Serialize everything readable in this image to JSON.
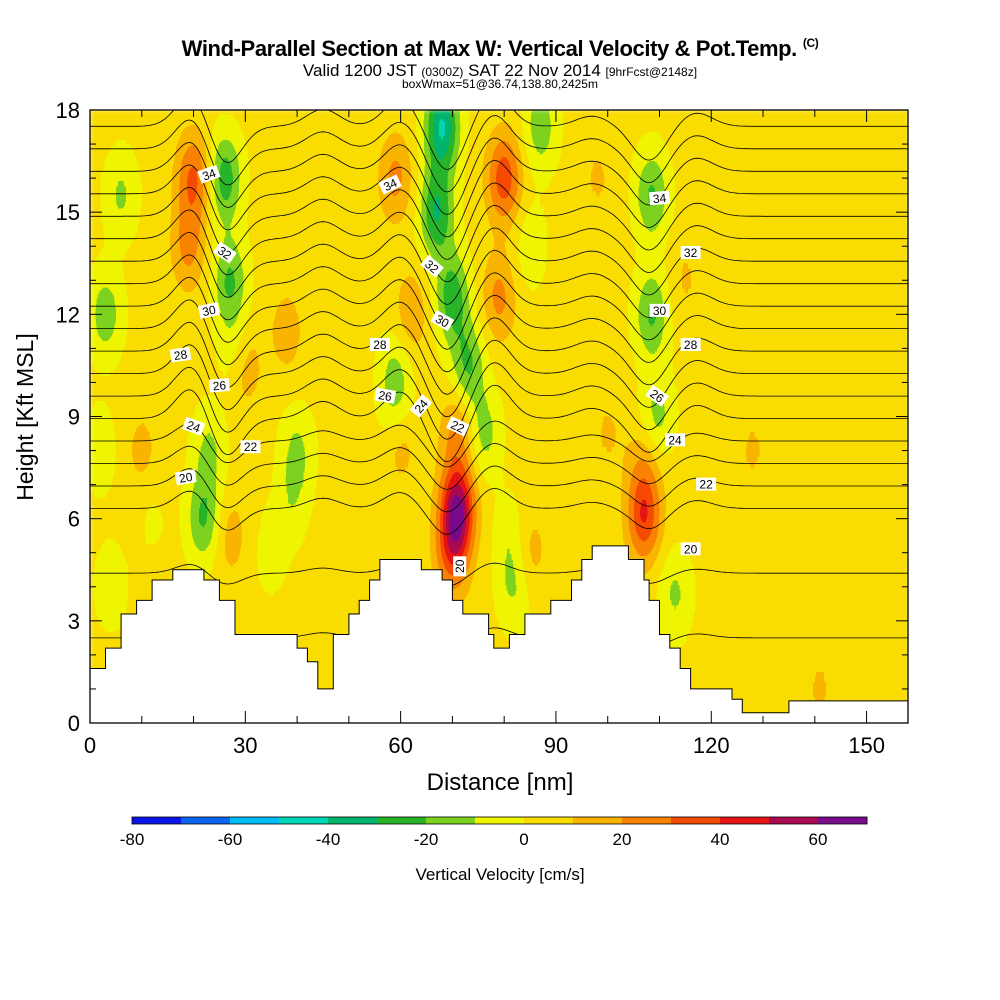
{
  "titles": {
    "main": "Wind-Parallel Section at Max W: Vertical Velocity & Pot.Temp.",
    "copyright": "(C)",
    "valid_prefix": "Valid 1200 JST",
    "valid_utc": "(0300Z)",
    "valid_date": "SAT 22 Nov 2014",
    "forecast": "[9hrFcst@2148z]",
    "box_max": "boxWmax=51@36.74,138.80,2425m"
  },
  "chart_data": {
    "type": "contour",
    "title": "Wind-Parallel Section at Max W: Vertical Velocity & Pot.Temp.",
    "xlabel": "Distance [nm]",
    "ylabel": "Height [Kft MSL]",
    "xlim": [
      0,
      158
    ],
    "ylim": [
      0,
      18
    ],
    "xticks": [
      0,
      30,
      60,
      90,
      120,
      150
    ],
    "yticks": [
      0,
      3,
      6,
      9,
      12,
      15,
      18
    ],
    "colorbar": {
      "label": "Vertical Velocity [cm/s]",
      "ticks": [
        -80,
        -60,
        -40,
        -20,
        0,
        20,
        40,
        60
      ],
      "range": [
        -80,
        70
      ],
      "levels": [
        -80,
        -70,
        -60,
        -50,
        -40,
        -30,
        -20,
        -10,
        0,
        10,
        20,
        30,
        40,
        50,
        60,
        70
      ],
      "colors": [
        "#0a14e6",
        "#0a64f0",
        "#00bef5",
        "#00d7b4",
        "#00b46e",
        "#28b428",
        "#7dd21e",
        "#f0f500",
        "#fadc00",
        "#fab400",
        "#fa8200",
        "#f54b00",
        "#e61414",
        "#aa0a50",
        "#780a8c"
      ]
    },
    "vertical_velocity_features": [
      {
        "x": 71,
        "y": 6.3,
        "w": 55
      },
      {
        "x": 70,
        "y": 5,
        "w": 30
      },
      {
        "x": 71,
        "y": 8.5,
        "w": 20
      },
      {
        "x": 107,
        "y": 6,
        "w": 35
      },
      {
        "x": 107,
        "y": 7.5,
        "w": 15
      },
      {
        "x": 20,
        "y": 16,
        "w": 30
      },
      {
        "x": 19,
        "y": 14,
        "w": 20
      },
      {
        "x": 80,
        "y": 16,
        "w": 35
      },
      {
        "x": 79,
        "y": 12.5,
        "w": 20
      },
      {
        "x": 59,
        "y": 16,
        "w": 20
      },
      {
        "x": 62,
        "y": 12,
        "w": 15
      },
      {
        "x": 10,
        "y": 8,
        "w": 10
      },
      {
        "x": 30,
        "y": 10.5,
        "w": 15
      },
      {
        "x": 38,
        "y": 11.5,
        "w": 12
      },
      {
        "x": 27,
        "y": 5.5,
        "w": 12
      },
      {
        "x": 60,
        "y": 8.2,
        "w": 12
      },
      {
        "x": 85,
        "y": 5,
        "w": 12
      },
      {
        "x": 115,
        "y": 13,
        "w": 8
      },
      {
        "x": 128,
        "y": 8,
        "w": 8
      },
      {
        "x": 100,
        "y": 8.5,
        "w": 8
      },
      {
        "x": 30,
        "y": 1,
        "w": 8
      },
      {
        "x": 64,
        "y": 1.5,
        "w": 8
      },
      {
        "x": 141,
        "y": 1,
        "w": 8
      },
      {
        "x": 98,
        "y": 16,
        "w": 8
      },
      {
        "x": 26,
        "y": 16,
        "w": -30
      },
      {
        "x": 27,
        "y": 13,
        "w": -25
      },
      {
        "x": 28,
        "y": 11,
        "w": -12
      },
      {
        "x": 3,
        "y": 12,
        "w": -20
      },
      {
        "x": 6,
        "y": 15.5,
        "w": -15
      },
      {
        "x": 2,
        "y": 8,
        "w": -10
      },
      {
        "x": 68,
        "y": 17.5,
        "w": -45
      },
      {
        "x": 67,
        "y": 15,
        "w": -35
      },
      {
        "x": 70,
        "y": 12.5,
        "w": -30
      },
      {
        "x": 73,
        "y": 10.5,
        "w": -25
      },
      {
        "x": 76,
        "y": 8.5,
        "w": -18
      },
      {
        "x": 87,
        "y": 17.5,
        "w": -20
      },
      {
        "x": 85,
        "y": 14,
        "w": -10
      },
      {
        "x": 108.5,
        "y": 15.5,
        "w": -25
      },
      {
        "x": 108.5,
        "y": 12,
        "w": -25
      },
      {
        "x": 109.5,
        "y": 9,
        "w": -18
      },
      {
        "x": 22,
        "y": 6,
        "w": -25
      },
      {
        "x": 23,
        "y": 8,
        "w": -15
      },
      {
        "x": 40,
        "y": 8,
        "w": -15
      },
      {
        "x": 39,
        "y": 6.5,
        "w": -10
      },
      {
        "x": 59,
        "y": 9.5,
        "w": -15
      },
      {
        "x": 59,
        "y": 10.5,
        "w": -10
      },
      {
        "x": 82,
        "y": 4,
        "w": -15
      },
      {
        "x": 81,
        "y": 5.5,
        "w": -10
      },
      {
        "x": 113,
        "y": 3.8,
        "w": -15
      },
      {
        "x": 35,
        "y": 5,
        "w": -8
      },
      {
        "x": 4,
        "y": 4,
        "w": -10
      },
      {
        "x": 12,
        "y": 6,
        "w": -5
      }
    ],
    "potential_temperature": {
      "levels": [
        18,
        19,
        20,
        21,
        22,
        23,
        24,
        25,
        26,
        27,
        28,
        29,
        30,
        31,
        32,
        33,
        34,
        35,
        36,
        37
      ],
      "labels": [
        {
          "text": "34",
          "x": 23,
          "y": 16.1,
          "angle": -20
        },
        {
          "text": "32",
          "x": 26,
          "y": 13.8,
          "angle": 35
        },
        {
          "text": "30",
          "x": 23,
          "y": 12.1,
          "angle": -12
        },
        {
          "text": "28",
          "x": 17.5,
          "y": 10.8,
          "angle": -8
        },
        {
          "text": "26",
          "x": 25,
          "y": 9.9,
          "angle": -5
        },
        {
          "text": "24",
          "x": 20,
          "y": 8.7,
          "angle": 20
        },
        {
          "text": "22",
          "x": 31,
          "y": 8.1,
          "angle": 0
        },
        {
          "text": "20",
          "x": 18.5,
          "y": 7.2,
          "angle": -10
        },
        {
          "text": "34",
          "x": 58,
          "y": 15.8,
          "angle": -25
        },
        {
          "text": "32",
          "x": 66,
          "y": 13.4,
          "angle": 40
        },
        {
          "text": "30",
          "x": 68,
          "y": 11.8,
          "angle": 30
        },
        {
          "text": "28",
          "x": 56,
          "y": 11.1,
          "angle": 0
        },
        {
          "text": "26",
          "x": 57,
          "y": 9.6,
          "angle": 10
        },
        {
          "text": "24",
          "x": 64,
          "y": 9.3,
          "angle": -50
        },
        {
          "text": "22",
          "x": 71,
          "y": 8.7,
          "angle": 25
        },
        {
          "text": "20",
          "x": 71.5,
          "y": 4.6,
          "angle": -90
        },
        {
          "text": "34",
          "x": 110,
          "y": 15.4,
          "angle": -5
        },
        {
          "text": "32",
          "x": 116,
          "y": 13.8,
          "angle": 0
        },
        {
          "text": "30",
          "x": 110,
          "y": 12.1,
          "angle": 0
        },
        {
          "text": "28",
          "x": 116,
          "y": 11.1,
          "angle": 0
        },
        {
          "text": "26",
          "x": 109.5,
          "y": 9.6,
          "angle": 35
        },
        {
          "text": "24",
          "x": 113,
          "y": 8.3,
          "angle": 0
        },
        {
          "text": "22",
          "x": 119,
          "y": 7,
          "angle": 0
        },
        {
          "text": "20",
          "x": 116,
          "y": 5.1,
          "angle": 0
        }
      ]
    },
    "terrain": [
      [
        0,
        1.6
      ],
      [
        3,
        1.6
      ],
      [
        3,
        2.2
      ],
      [
        6,
        2.2
      ],
      [
        6,
        3.2
      ],
      [
        9,
        3.2
      ],
      [
        9,
        3.6
      ],
      [
        12,
        3.6
      ],
      [
        12,
        4.2
      ],
      [
        16,
        4.2
      ],
      [
        16,
        4.5
      ],
      [
        22,
        4.5
      ],
      [
        22,
        4.2
      ],
      [
        25,
        4.2
      ],
      [
        25,
        3.6
      ],
      [
        28,
        3.6
      ],
      [
        28,
        2.6
      ],
      [
        40,
        2.6
      ],
      [
        40,
        2.2
      ],
      [
        42,
        2.2
      ],
      [
        42,
        1.8
      ],
      [
        44,
        1.8
      ],
      [
        44,
        1.0
      ],
      [
        47,
        1.0
      ],
      [
        47,
        2.6
      ],
      [
        50,
        2.6
      ],
      [
        50,
        3.2
      ],
      [
        52,
        3.2
      ],
      [
        52,
        3.6
      ],
      [
        54,
        3.6
      ],
      [
        54,
        4.2
      ],
      [
        56,
        4.2
      ],
      [
        56,
        4.8
      ],
      [
        64,
        4.8
      ],
      [
        64,
        4.5
      ],
      [
        68,
        4.5
      ],
      [
        68,
        4.2
      ],
      [
        70,
        4.2
      ],
      [
        70,
        3.6
      ],
      [
        72,
        3.6
      ],
      [
        72,
        3.2
      ],
      [
        77,
        3.2
      ],
      [
        77,
        2.6
      ],
      [
        78,
        2.6
      ],
      [
        78,
        2.2
      ],
      [
        81,
        2.2
      ],
      [
        81,
        2.6
      ],
      [
        84,
        2.6
      ],
      [
        84,
        3.2
      ],
      [
        89,
        3.2
      ],
      [
        89,
        3.6
      ],
      [
        93,
        3.6
      ],
      [
        93,
        4.2
      ],
      [
        95,
        4.2
      ],
      [
        95,
        4.8
      ],
      [
        97,
        4.8
      ],
      [
        97,
        5.2
      ],
      [
        104,
        5.2
      ],
      [
        104,
        4.8
      ],
      [
        107,
        4.8
      ],
      [
        107,
        4.2
      ],
      [
        108,
        4.2
      ],
      [
        108,
        3.6
      ],
      [
        110,
        3.6
      ],
      [
        110,
        2.6
      ],
      [
        112,
        2.6
      ],
      [
        112,
        2.2
      ],
      [
        114,
        2.2
      ],
      [
        114,
        1.6
      ],
      [
        116,
        1.6
      ],
      [
        116,
        1.0
      ],
      [
        124,
        1.0
      ],
      [
        124,
        0.7
      ],
      [
        126,
        0.7
      ],
      [
        126,
        0.3
      ],
      [
        135,
        0.3
      ],
      [
        135,
        0.65
      ],
      [
        158,
        0.65
      ]
    ]
  }
}
